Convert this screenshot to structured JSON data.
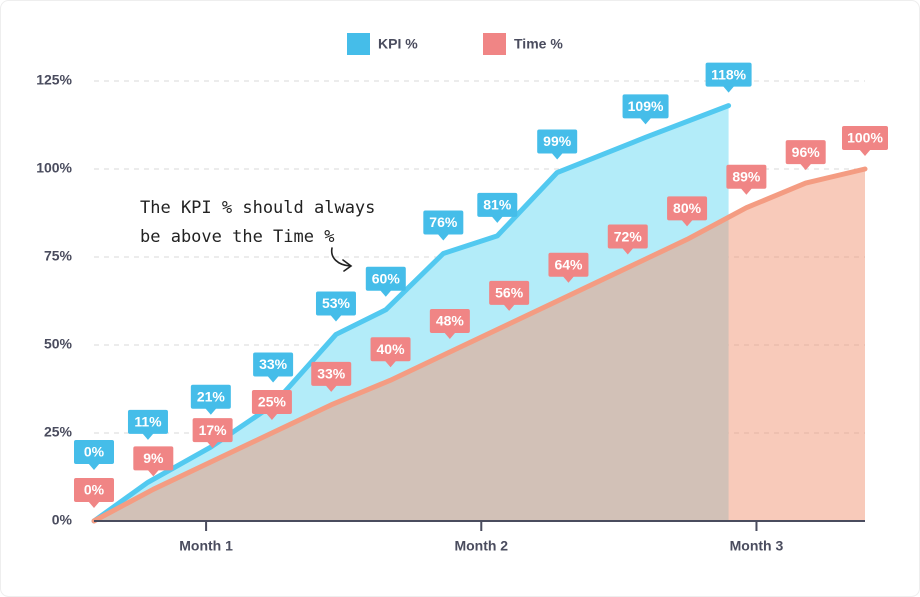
{
  "chart_data": {
    "type": "area",
    "xlim": [
      0,
      13
    ],
    "xticks": [
      {
        "value": 1.89,
        "label": "Month 1"
      },
      {
        "value": 6.53,
        "label": "Month 2"
      },
      {
        "value": 11.17,
        "label": "Month 3"
      }
    ],
    "ylim": [
      0,
      125
    ],
    "yticks": [
      {
        "value": 0,
        "label": "0%"
      },
      {
        "value": 25,
        "label": "25%"
      },
      {
        "value": 50,
        "label": "50%"
      },
      {
        "value": 75,
        "label": "75%"
      },
      {
        "value": 100,
        "label": "100%"
      },
      {
        "value": 125,
        "label": "125%"
      }
    ],
    "grid": true,
    "legend": "top",
    "annotation": [
      "The KPI % should always",
      "be above the Time %"
    ],
    "series": [
      {
        "name": "KPI %",
        "color": "#45bde9",
        "line_color": "#52c9f0",
        "area_color": "#b3ecf9",
        "x": [
          0,
          0.91,
          1.97,
          3.02,
          4.08,
          4.92,
          5.89,
          6.8,
          7.81,
          9.3,
          10.7
        ],
        "values": [
          0,
          11,
          21,
          33,
          53,
          60,
          76,
          81,
          99,
          109,
          118
        ],
        "value_labels": [
          "0%",
          "11%",
          "21%",
          "33%",
          "53%",
          "60%",
          "76%",
          "81%",
          "99%",
          "109%",
          "118%"
        ]
      },
      {
        "name": "Time %",
        "color": "#f08585",
        "line_color": "#f49c82",
        "area_color": "rgba(241,150,118,0.5)",
        "x": [
          0,
          1,
          2,
          3,
          4,
          5,
          6,
          7,
          8,
          9,
          10,
          11,
          12,
          13
        ],
        "values": [
          0,
          9,
          17,
          25,
          33,
          40,
          48,
          56,
          64,
          72,
          80,
          89,
          96,
          100
        ],
        "value_labels": [
          "0%",
          "9%",
          "17%",
          "25%",
          "33%",
          "40%",
          "48%",
          "56%",
          "64%",
          "72%",
          "80%",
          "89%",
          "96%",
          "100%"
        ]
      }
    ]
  }
}
